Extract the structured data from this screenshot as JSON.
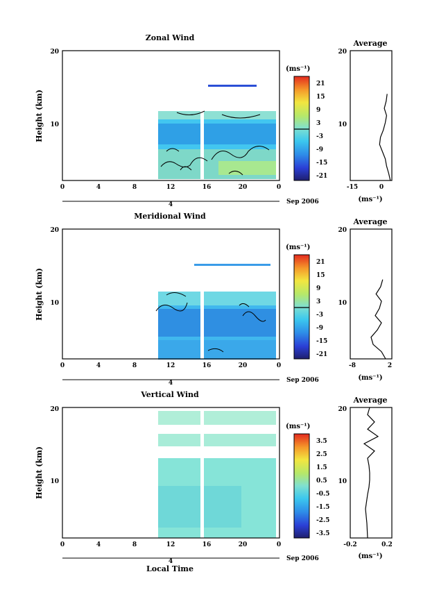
{
  "chart_data": [
    {
      "type": "heatmap",
      "title": "Zonal Wind",
      "ylabel": "Height (km)",
      "xlabel": "",
      "x_ticks": [
        "0",
        "4",
        "8",
        "12",
        "16",
        "20",
        "0"
      ],
      "y_ticks": [
        "10",
        "20"
      ],
      "ylim": [
        2,
        20
      ],
      "date_label": "4",
      "month_label": "Sep 2006",
      "colorbar": {
        "unit": "(ms⁻¹)",
        "ticks": [
          "21",
          "15",
          "9",
          "3",
          "-3",
          "-9",
          "-15",
          "-21"
        ],
        "range": [
          -24,
          24
        ]
      },
      "data_start_hour": 10.5,
      "data_gap_hours": [
        15.6,
        16.1
      ],
      "data_top_km": 12.5,
      "avg_profile": {
        "title": "Average",
        "xlabel": "(ms⁻¹)",
        "x_ticks": [
          "-15",
          "0"
        ],
        "xlim": [
          -20,
          2
        ],
        "y_ticks": [
          "10",
          "20"
        ],
        "heights_km": [
          2.0,
          3.0,
          4.0,
          5.0,
          6.0,
          7.0,
          8.0,
          9.0,
          10.0,
          11.0,
          12.0,
          13.0,
          14.0
        ],
        "values": [
          1.2,
          0.3,
          -0.8,
          -1.5,
          -3.0,
          -4.5,
          -4.0,
          -2.5,
          -1.5,
          -0.8,
          -2.0,
          -1.0,
          -0.5
        ]
      }
    },
    {
      "type": "heatmap",
      "title": "Meridional Wind",
      "ylabel": "Height (km)",
      "xlabel": "",
      "x_ticks": [
        "0",
        "4",
        "8",
        "12",
        "16",
        "20",
        "0"
      ],
      "y_ticks": [
        "10",
        "20"
      ],
      "ylim": [
        2,
        20
      ],
      "date_label": "4",
      "month_label": "Sep 2006",
      "colorbar": {
        "unit": "(ms⁻¹)",
        "ticks": [
          "21",
          "15",
          "9",
          "3",
          "-3",
          "-9",
          "-15",
          "-21"
        ],
        "range": [
          -24,
          24
        ]
      },
      "data_start_hour": 10.5,
      "data_gap_hours": [
        15.6,
        16.1
      ],
      "data_top_km": 12.0,
      "avg_profile": {
        "title": "Average",
        "xlabel": "(ms⁻¹)",
        "x_ticks": [
          "-8",
          "2"
        ],
        "xlim": [
          -8,
          2
        ],
        "y_ticks": [
          "10",
          "20"
        ],
        "heights_km": [
          2.0,
          3.0,
          4.0,
          5.0,
          6.0,
          7.0,
          8.0,
          9.0,
          10.0,
          11.0,
          12.0,
          13.0
        ],
        "values": [
          0.5,
          -0.5,
          -2.5,
          -3.0,
          -1.5,
          -0.5,
          -2.0,
          -1.0,
          -0.5,
          -1.8,
          -0.7,
          -0.2
        ]
      }
    },
    {
      "type": "heatmap",
      "title": "Vertical Wind",
      "ylabel": "Height (km)",
      "xlabel": "Local Time",
      "x_ticks": [
        "0",
        "4",
        "8",
        "12",
        "16",
        "20",
        "0"
      ],
      "y_ticks": [
        "10",
        "20"
      ],
      "ylim": [
        2,
        20
      ],
      "date_label": "4",
      "month_label": "Sep 2006",
      "colorbar": {
        "unit": "(ms⁻¹)",
        "ticks": [
          "3.5",
          "2.5",
          "1.5",
          "0.5",
          "-0.5",
          "-1.5",
          "-2.5",
          "-3.5"
        ],
        "range": [
          -4,
          4
        ]
      },
      "data_start_hour": 10.5,
      "data_gap_hours": [
        15.6,
        16.1
      ],
      "data_top_km": 20.0,
      "avg_profile": {
        "title": "Average",
        "xlabel": "(ms⁻¹)",
        "x_ticks": [
          "-0.2",
          "0.2"
        ],
        "xlim": [
          -0.3,
          0.3
        ],
        "y_ticks": [
          "10",
          "20"
        ],
        "heights_km": [
          2.0,
          4.0,
          6.0,
          8.0,
          9.0,
          10.0,
          11.0,
          12.0,
          13.0,
          14.0,
          15.0,
          16.0,
          17.0,
          18.0,
          19.0,
          20.0
        ],
        "values": [
          -0.05,
          -0.06,
          -0.08,
          -0.05,
          -0.03,
          -0.02,
          -0.02,
          -0.03,
          -0.05,
          0.05,
          -0.1,
          0.1,
          -0.05,
          0.05,
          -0.05,
          -0.02
        ]
      }
    }
  ]
}
